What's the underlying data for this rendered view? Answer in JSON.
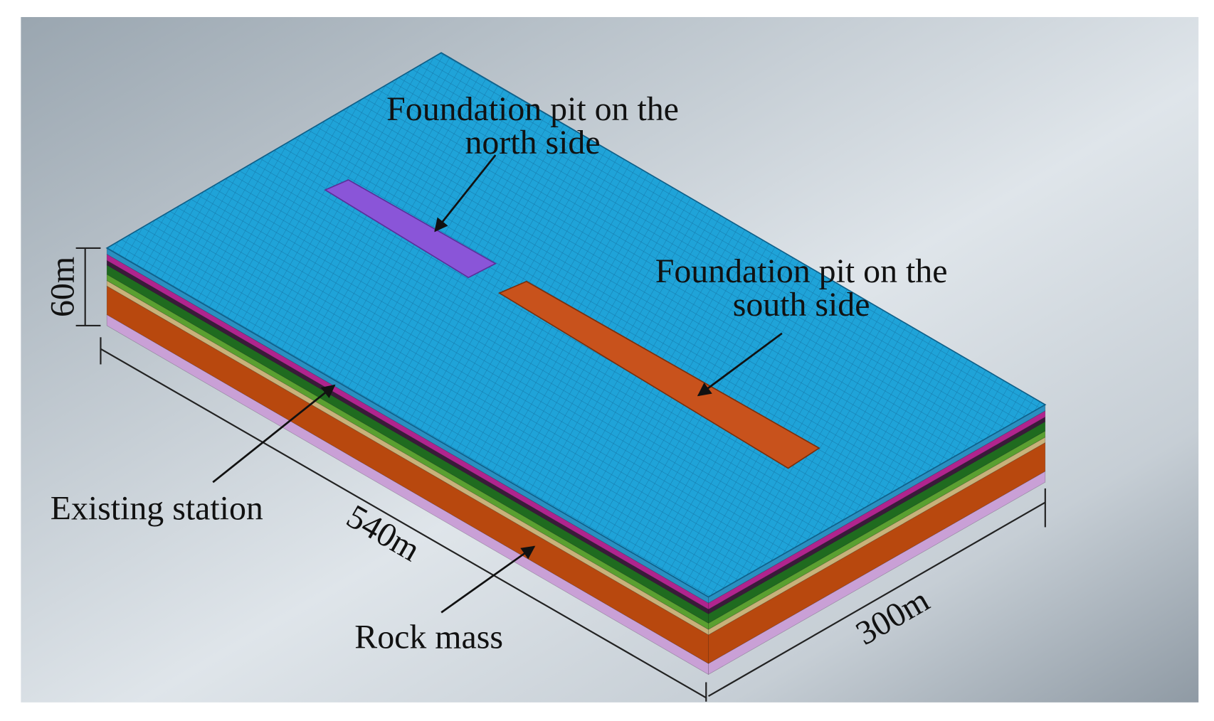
{
  "labels": {
    "north_pit": [
      "Foundation pit on the",
      "north side"
    ],
    "south_pit": [
      "Foundation pit on the",
      "south side"
    ],
    "existing_station": "Existing station",
    "rock_mass": "Rock mass"
  },
  "dimensions": {
    "height": "60m",
    "length": "540m",
    "width": "300m"
  }
}
